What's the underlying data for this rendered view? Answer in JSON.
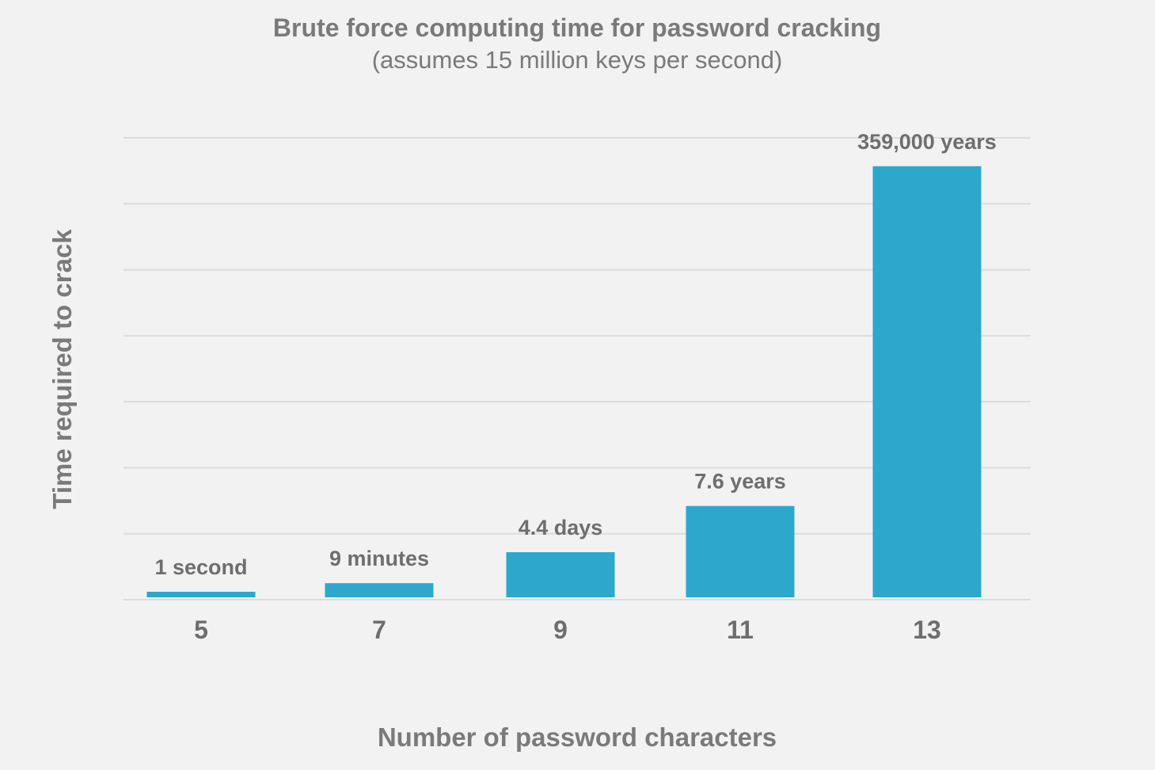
{
  "chart_data": {
    "type": "bar",
    "title": "Brute force computing time for password cracking",
    "subtitle": "(assumes 15 million keys per second)",
    "xlabel": "Number of password characters",
    "ylabel": "Time required to crack",
    "categories": [
      "5",
      "7",
      "9",
      "11",
      "13"
    ],
    "values": [
      0.12,
      0.25,
      0.72,
      1.42,
      6.57
    ],
    "value_labels": [
      "1 second",
      "9 minutes",
      "4.4 days",
      "7.6 years",
      "359,000 years"
    ],
    "ylim": [
      0,
      7
    ],
    "grid": true,
    "bar_color": "#2ea7cc"
  }
}
